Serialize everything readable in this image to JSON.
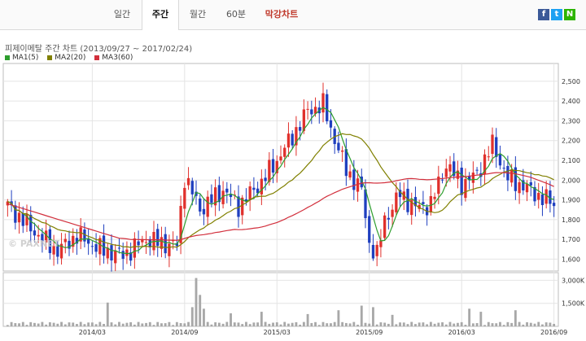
{
  "tabs": [
    {
      "label": "일간",
      "active": false
    },
    {
      "label": "주간",
      "active": true
    },
    {
      "label": "월간",
      "active": false
    },
    {
      "label": "60분",
      "active": false
    },
    {
      "label": "막강차트",
      "active": false
    }
  ],
  "share": [
    {
      "icon": "facebook-icon",
      "glyph": "f",
      "color": "#3b5998"
    },
    {
      "icon": "twitter-icon",
      "glyph": "t",
      "color": "#1da1f2"
    },
    {
      "icon": "naver-icon",
      "glyph": "N",
      "color": "#2db400"
    }
  ],
  "chart": {
    "title": "피제이메탈 주간 차트 (2013/09/27 ~ 2017/02/24)",
    "watermark": "© PAXNET",
    "legend": [
      {
        "label": "MA1(5)",
        "color": "#2e9e2e"
      },
      {
        "label": "MA2(20)",
        "color": "#808000"
      },
      {
        "label": "MA3(60)",
        "color": "#d22f3c"
      }
    ]
  },
  "chart_data": {
    "type": "candlestick",
    "title": "피제이메탈 주간 차트 (2013/09/27 ~ 2017/02/24)",
    "date_range": [
      "2013/09/27",
      "2017/02/24"
    ],
    "interval": "weekly",
    "x_ticks": [
      "2014/03",
      "2014/09",
      "2015/03",
      "2015/09",
      "2016/03",
      "2016/09"
    ],
    "price_axis": {
      "ticks": [
        1600,
        1700,
        1800,
        1900,
        2000,
        2100,
        2200,
        2300,
        2400,
        2500
      ],
      "range": [
        1540,
        2590
      ]
    },
    "volume_axis": {
      "ticks": [
        "1,500K",
        "3,000K"
      ],
      "range_k": [
        0,
        3500
      ]
    },
    "up_color": "#e0302c",
    "down_color": "#1f3fbf",
    "price_anchors": [
      [
        0,
        1870
      ],
      [
        8,
        1720
      ],
      [
        13,
        1640
      ],
      [
        18,
        1720
      ],
      [
        24,
        1650
      ],
      [
        30,
        1620
      ],
      [
        36,
        1700
      ],
      [
        40,
        1680
      ],
      [
        44,
        1670
      ],
      [
        46,
        2020
      ],
      [
        50,
        1850
      ],
      [
        56,
        1950
      ],
      [
        60,
        1870
      ],
      [
        66,
        1990
      ],
      [
        70,
        2100
      ],
      [
        74,
        2220
      ],
      [
        78,
        2350
      ],
      [
        82,
        2380
      ],
      [
        84,
        2260
      ],
      [
        88,
        2050
      ],
      [
        92,
        1950
      ],
      [
        94,
        1680
      ],
      [
        96,
        1620
      ],
      [
        98,
        1800
      ],
      [
        102,
        1930
      ],
      [
        106,
        1860
      ],
      [
        110,
        1880
      ],
      [
        114,
        2080
      ],
      [
        118,
        1980
      ],
      [
        122,
        2030
      ],
      [
        126,
        2180
      ],
      [
        130,
        2010
      ],
      [
        134,
        1970
      ],
      [
        138,
        1920
      ],
      [
        142,
        1880
      ]
    ],
    "volume_k": {
      "baseline": 170,
      "spikes": [
        [
          26,
          1550
        ],
        [
          48,
          1250
        ],
        [
          49,
          3150
        ],
        [
          50,
          2050
        ],
        [
          51,
          1150
        ],
        [
          58,
          850
        ],
        [
          66,
          950
        ],
        [
          78,
          800
        ],
        [
          86,
          1050
        ],
        [
          92,
          1350
        ],
        [
          95,
          1250
        ],
        [
          100,
          750
        ],
        [
          120,
          1150
        ],
        [
          123,
          950
        ],
        [
          132,
          1050
        ]
      ]
    },
    "moving_averages": [
      {
        "name": "MA1(5)",
        "window": 5
      },
      {
        "name": "MA2(20)",
        "window": 20
      },
      {
        "name": "MA3(60)",
        "window": 60
      }
    ],
    "grid": true
  }
}
